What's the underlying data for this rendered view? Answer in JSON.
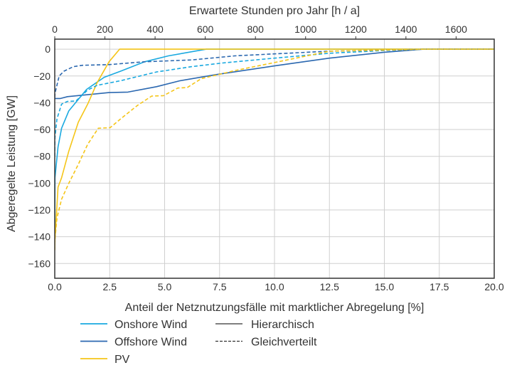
{
  "chart_data": {
    "type": "line",
    "title": "",
    "xlabel": "Anteil der Netznutzungsfälle mit marktlicher Abregelung [%]",
    "x2label": "Erwartete Stunden pro Jahr [h / a]",
    "ylabel": "Abgeregelte Leistung [GW]",
    "xlim": [
      0,
      20
    ],
    "x2lim": [
      0,
      1752
    ],
    "ylim": [
      -171,
      7.5
    ],
    "xticks": [
      "0.0",
      "2.5",
      "5.0",
      "7.5",
      "10.0",
      "12.5",
      "15.0",
      "17.5",
      "20.0"
    ],
    "xtick_values": [
      0,
      2.5,
      5,
      7.5,
      10,
      12.5,
      15,
      17.5,
      20
    ],
    "x2ticks": [
      "0",
      "200",
      "400",
      "600",
      "800",
      "1000",
      "1200",
      "1400",
      "1600"
    ],
    "x2tick_values": [
      0,
      200,
      400,
      600,
      800,
      1000,
      1200,
      1400,
      1600
    ],
    "yticks": [
      "0",
      "−20",
      "−40",
      "−60",
      "−80",
      "−100",
      "−120",
      "−140",
      "−160"
    ],
    "ytick_values": [
      0,
      -20,
      -40,
      -60,
      -80,
      -100,
      -120,
      -140,
      -160
    ],
    "grid": true,
    "legend_position": "bottom",
    "legend": {
      "technologies": [
        {
          "name": "Onshore Wind",
          "color": "#1aa9e0"
        },
        {
          "name": "Offshore Wind",
          "color": "#2b68b0"
        },
        {
          "name": "PV",
          "color": "#f5c518"
        }
      ],
      "methods": [
        {
          "name": "Hierarchisch",
          "style": "solid"
        },
        {
          "name": "Gleichverteilt",
          "style": "dashed"
        }
      ]
    },
    "series": [
      {
        "name": "Onshore Wind – Hierarchisch",
        "color": "#1aa9e0",
        "style": "solid",
        "x": [
          0,
          0.01,
          0.15,
          0.31,
          0.64,
          1.45,
          2.25,
          3.0,
          4.09,
          5.17,
          6.9,
          20
        ],
        "y": [
          -145,
          -96,
          -73,
          -59,
          -46,
          -30,
          -21,
          -16.4,
          -9.4,
          -5,
          0,
          0
        ]
      },
      {
        "name": "Offshore Wind – Hierarchisch",
        "color": "#2b68b0",
        "style": "solid",
        "x": [
          0,
          0.26,
          0.58,
          2.47,
          3.33,
          4.63,
          5.71,
          7.32,
          10,
          12.5,
          15,
          16.8,
          20
        ],
        "y": [
          -36.8,
          -36.8,
          -35.4,
          -32.4,
          -32,
          -28,
          -23.5,
          -19,
          -12.5,
          -6.7,
          -2.3,
          0,
          0
        ]
      },
      {
        "name": "PV – Hierarchisch",
        "color": "#f5c518",
        "style": "solid",
        "x": [
          0,
          0.01,
          0.15,
          0.31,
          0.64,
          1.07,
          1.5,
          1.93,
          2.47,
          2.95,
          20
        ],
        "y": [
          -150,
          -142,
          -103,
          -96,
          -76,
          -54.5,
          -41,
          -25,
          -9.4,
          0,
          0
        ]
      },
      {
        "name": "Onshore Wind – Gleichverteilt",
        "color": "#1aa9e0",
        "style": "dashed",
        "x": [
          0,
          0.01,
          0.1,
          0.31,
          0.58,
          0.96,
          1.5,
          1.93,
          3.0,
          4.63,
          6.24,
          7.64,
          10,
          12.5,
          15,
          16.8,
          20
        ],
        "y": [
          -80,
          -66,
          -52,
          -41,
          -39,
          -38.7,
          -30.5,
          -27,
          -23.5,
          -17,
          -13,
          -10.3,
          -6.7,
          -3,
          -1,
          0,
          0
        ]
      },
      {
        "name": "Offshore Wind – Gleichverteilt",
        "color": "#2b68b0",
        "style": "dashed",
        "x": [
          0,
          0.01,
          0.2,
          0.42,
          0.85,
          1.28,
          2.47,
          4.09,
          6.24,
          8.19,
          10,
          12.5,
          15,
          16.8,
          20
        ],
        "y": [
          -36,
          -33,
          -20,
          -16.4,
          -13,
          -12,
          -11.5,
          -9.4,
          -8,
          -5,
          -3.5,
          -1.5,
          -0.7,
          0,
          0
        ]
      },
      {
        "name": "PV – Gleichverteilt",
        "color": "#f5c518",
        "style": "dashed",
        "x": [
          0,
          0.01,
          0.1,
          0.31,
          0.64,
          1.07,
          1.5,
          1.98,
          2.52,
          3.0,
          3.76,
          4.41,
          4.95,
          5.6,
          6.03,
          6.67,
          7.54,
          8.19,
          10,
          12.5,
          15,
          16.8,
          20
        ],
        "y": [
          -150,
          -142,
          -126,
          -112,
          -100,
          -86,
          -71,
          -59,
          -58.6,
          -52,
          -42,
          -35,
          -34.7,
          -29,
          -28.6,
          -22,
          -18.6,
          -16,
          -10,
          -1.5,
          -0.7,
          0,
          0
        ]
      }
    ]
  }
}
